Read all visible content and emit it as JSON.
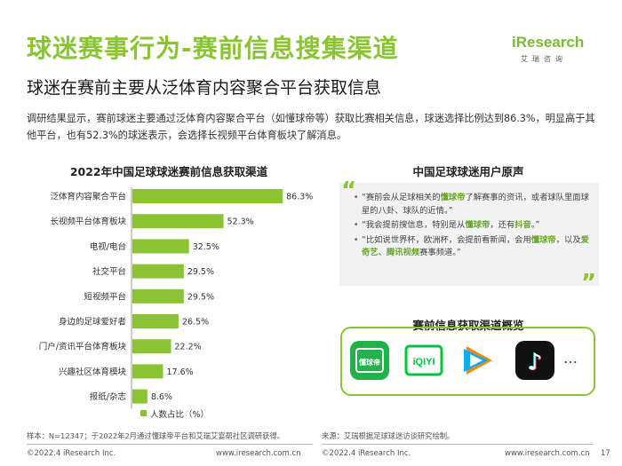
{
  "header": {
    "title": "球迷赛事行为-赛前信息搜集渠道",
    "subtitle": "球迷在赛前主要从泛体育内容聚合平台获取信息"
  },
  "logo": {
    "word": "iResearch",
    "sub": "艾瑞咨询"
  },
  "intro": "调研结果显示，赛前球迷主要通过泛体育内容聚合平台（如懂球帝等）获取比赛相关信息，球迷选择比例达到86.3%，明显高于其他平台，也有52.3%的球迷表示，会选择长视频平台体育板块了解消息。",
  "chart_data": {
    "type": "bar",
    "orientation": "horizontal",
    "title": "2022年中国足球球迷赛前信息获取渠道",
    "categories": [
      "泛体育内容聚合平台",
      "长视频平台体育板块",
      "电视/电台",
      "社交平台",
      "短视频平台",
      "身边的足球爱好者",
      "门户/资讯平台体育板块",
      "兴趣社区体育模块",
      "报纸/杂志"
    ],
    "series": [
      {
        "name": "人数占比（%）",
        "values": [
          86.3,
          52.3,
          32.5,
          29.5,
          29.5,
          26.5,
          22.2,
          17.6,
          8.6
        ]
      }
    ],
    "value_labels": [
      "86.3%",
      "52.3%",
      "32.5%",
      "29.5%",
      "29.5%",
      "26.5%",
      "22.2%",
      "17.6%",
      "8.6%"
    ],
    "xlim": [
      0,
      100
    ],
    "grid": false,
    "legend_position": "bottom",
    "color": "#8ac433"
  },
  "voices": {
    "title": "中国足球球迷用户原声",
    "quotes": [
      {
        "pre": "“赛前会从足球相关的",
        "hl1": "懂球帝",
        "mid": "了解赛事的资讯，或者球队里面球星的八卦、球队的近情。”",
        "hl2": "",
        "post": ""
      },
      {
        "pre": "“我会提前搜信息，特别是从",
        "hl1": "懂球帝",
        "mid": "，还有",
        "hl2": "抖音",
        "post": "。”"
      },
      {
        "pre": "“比如说世界杯，欧洲杯，会提前看新闻，会用",
        "hl1": "懂球帝",
        "mid": "，以及",
        "hl2": "爱奇艺、腾讯视频",
        "post": "赛事频道。”"
      }
    ]
  },
  "channels": {
    "title": "赛前信息获取渠道概览",
    "apps": [
      {
        "name": "懂球帝",
        "icon": "dongqiudi-app-icon",
        "glyph": "懂球帝"
      },
      {
        "name": "爱奇艺",
        "icon": "iqiyi-app-icon",
        "glyph": "iQIYI"
      },
      {
        "name": "腾讯视频",
        "icon": "tencent-video-app-icon"
      },
      {
        "name": "抖音",
        "icon": "douyin-app-icon",
        "glyph": "♪"
      }
    ],
    "more": "…"
  },
  "notes": {
    "sample": "样本：N=12347；于2022年2月通过懂球帝平台和艾瑞艾宴帮社区调研获得。",
    "source": "来源：艾瑞根据足球球迷访谈研究绘制。"
  },
  "footer": {
    "left_copyright": "©2022.4 iResearch Inc.",
    "left_site": "www.iresearch.com.cn",
    "right_copyright": "©2022.4 iResearch Inc.",
    "right_site": "www.iresearch.com.cn",
    "page": "17"
  },
  "colors": {
    "brand_green": "#8ac433",
    "highlight_green": "#6aa82a"
  }
}
